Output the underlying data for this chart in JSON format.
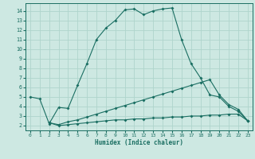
{
  "xlabel": "Humidex (Indice chaleur)",
  "background_color": "#cde8e2",
  "grid_color": "#afd4cc",
  "line_color": "#1a6e62",
  "line1_x": [
    0,
    1,
    2,
    3,
    4,
    5,
    6,
    7,
    8,
    9,
    10,
    11,
    12,
    13,
    14,
    15,
    16,
    17,
    18,
    19,
    20,
    21,
    22,
    23
  ],
  "line1_y": [
    5.0,
    4.8,
    2.2,
    3.9,
    3.8,
    6.2,
    8.5,
    11.0,
    12.2,
    13.0,
    14.1,
    14.2,
    13.6,
    14.0,
    14.2,
    14.3,
    11.0,
    8.5,
    7.0,
    5.2,
    5.0,
    4.0,
    3.5,
    2.5
  ],
  "line2_x": [
    2,
    3,
    4,
    5,
    6,
    7,
    8,
    9,
    10,
    11,
    12,
    13,
    14,
    15,
    16,
    17,
    18,
    19,
    20,
    21,
    22,
    23
  ],
  "line2_y": [
    2.3,
    2.1,
    2.4,
    2.6,
    2.9,
    3.2,
    3.5,
    3.8,
    4.1,
    4.4,
    4.7,
    5.0,
    5.3,
    5.6,
    5.9,
    6.2,
    6.5,
    6.8,
    5.2,
    4.2,
    3.7,
    2.5
  ],
  "line3_x": [
    2,
    3,
    4,
    5,
    6,
    7,
    8,
    9,
    10,
    11,
    12,
    13,
    14,
    15,
    16,
    17,
    18,
    19,
    20,
    21,
    22,
    23
  ],
  "line3_y": [
    2.3,
    2.0,
    2.1,
    2.2,
    2.3,
    2.4,
    2.5,
    2.6,
    2.6,
    2.7,
    2.7,
    2.8,
    2.8,
    2.9,
    2.9,
    3.0,
    3.0,
    3.1,
    3.1,
    3.2,
    3.2,
    2.5
  ],
  "xlim": [
    -0.5,
    23.5
  ],
  "ylim": [
    1.5,
    14.8
  ],
  "xticks": [
    0,
    1,
    2,
    3,
    4,
    5,
    6,
    7,
    8,
    9,
    10,
    11,
    12,
    13,
    14,
    15,
    16,
    17,
    18,
    19,
    20,
    21,
    22,
    23
  ],
  "yticks": [
    2,
    3,
    4,
    5,
    6,
    7,
    8,
    9,
    10,
    11,
    12,
    13,
    14
  ]
}
